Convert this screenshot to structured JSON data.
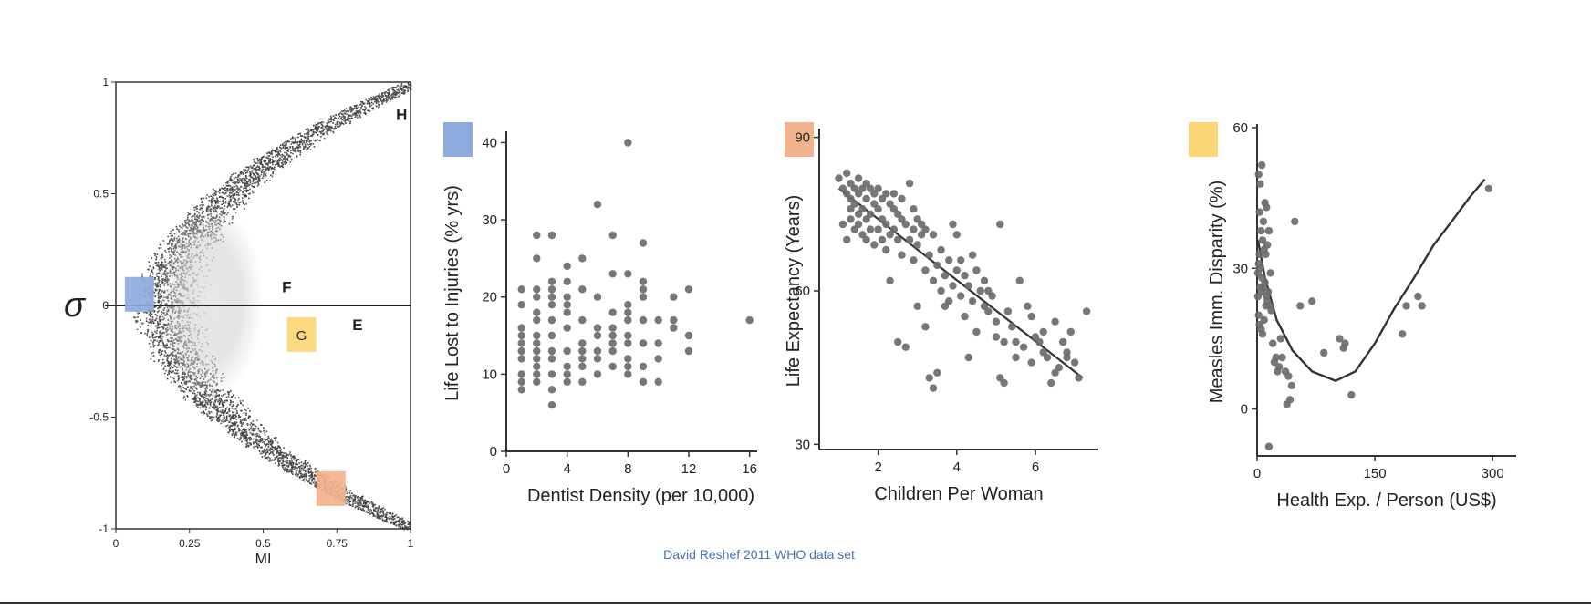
{
  "footer": {
    "credit": "David Reshef 2011 WHO data set"
  },
  "colors": {
    "blue": "#8eabdd",
    "orange": "#f3b28e",
    "yellow": "#fbd676",
    "dot": "#6b6b6b",
    "axis": "#333333"
  },
  "chart_data": [
    {
      "type": "scatter",
      "id": "mic-vs-correlation",
      "xlabel": "MI",
      "ylabel": "σ",
      "xlim": [
        0,
        1
      ],
      "ylim": [
        -1,
        1
      ],
      "xticks": [
        "0",
        "0.25",
        "0.5",
        "0.75",
        "1"
      ],
      "yticks": [
        "-1",
        "-0.5",
        "0",
        "0.5",
        "1"
      ],
      "points_description": "dense density of pairwise relationships forming a parabolic band from MI≈0.15 at σ=0 to MI≈1 at σ=±1",
      "annotations": [
        {
          "label": "H",
          "x": 0.97,
          "y": 0.83
        },
        {
          "label": "F",
          "x": 0.58,
          "y": 0.06
        },
        {
          "label": "E",
          "x": 0.82,
          "y": -0.11
        }
      ],
      "markers": [
        {
          "label": "",
          "color": "blue",
          "x": 0.08,
          "y": 0.05
        },
        {
          "label": "G",
          "color": "yellow",
          "x": 0.63,
          "y": -0.13
        },
        {
          "label": "",
          "color": "orange",
          "x": 0.73,
          "y": -0.82
        }
      ]
    },
    {
      "type": "scatter",
      "id": "dentist-vs-injuries",
      "marker_color": "blue",
      "xlabel": "Dentist Density (per 10,000)",
      "ylabel": "Life Lost to Injuries (% yrs)",
      "xlim": [
        0,
        16.5
      ],
      "ylim": [
        0,
        41
      ],
      "xticks": [
        0,
        4,
        8,
        12,
        16
      ],
      "yticks": [
        0,
        10,
        20,
        30,
        40
      ],
      "points": [
        [
          1,
          8
        ],
        [
          1,
          9
        ],
        [
          1,
          10
        ],
        [
          1,
          12
        ],
        [
          1,
          13
        ],
        [
          1,
          15
        ],
        [
          1,
          16
        ],
        [
          1,
          19
        ],
        [
          1,
          21
        ],
        [
          1,
          14
        ],
        [
          2,
          10
        ],
        [
          2,
          11
        ],
        [
          2,
          13
        ],
        [
          2,
          14
        ],
        [
          2,
          15
        ],
        [
          2,
          17
        ],
        [
          2,
          18
        ],
        [
          2,
          20
        ],
        [
          2,
          21
        ],
        [
          2,
          25
        ],
        [
          2,
          28
        ],
        [
          2,
          12
        ],
        [
          2,
          9
        ],
        [
          3,
          6
        ],
        [
          3,
          8
        ],
        [
          3,
          10
        ],
        [
          3,
          12
        ],
        [
          3,
          15
        ],
        [
          3,
          17
        ],
        [
          3,
          19
        ],
        [
          3,
          20
        ],
        [
          3,
          21
        ],
        [
          3,
          22
        ],
        [
          3,
          28
        ],
        [
          3,
          13
        ],
        [
          4,
          9
        ],
        [
          4,
          10
        ],
        [
          4,
          11
        ],
        [
          4,
          13
        ],
        [
          4,
          16
        ],
        [
          4,
          18
        ],
        [
          4,
          19
        ],
        [
          4,
          20
        ],
        [
          4,
          22
        ],
        [
          4,
          24
        ],
        [
          5,
          9
        ],
        [
          5,
          11
        ],
        [
          5,
          12
        ],
        [
          5,
          13
        ],
        [
          5,
          14
        ],
        [
          5,
          17
        ],
        [
          5,
          21
        ],
        [
          5,
          25
        ],
        [
          6,
          10
        ],
        [
          6,
          12
        ],
        [
          6,
          13
        ],
        [
          6,
          15
        ],
        [
          6,
          16
        ],
        [
          6,
          32
        ],
        [
          6,
          20
        ],
        [
          7,
          11
        ],
        [
          7,
          13
        ],
        [
          7,
          14
        ],
        [
          7,
          15
        ],
        [
          7,
          16
        ],
        [
          7,
          18
        ],
        [
          7,
          23
        ],
        [
          7,
          28
        ],
        [
          8,
          10
        ],
        [
          8,
          11
        ],
        [
          8,
          12
        ],
        [
          8,
          14
        ],
        [
          8,
          15
        ],
        [
          8,
          17
        ],
        [
          8,
          18
        ],
        [
          8,
          19
        ],
        [
          8,
          23
        ],
        [
          8,
          40
        ],
        [
          9,
          9
        ],
        [
          9,
          11
        ],
        [
          9,
          14
        ],
        [
          9,
          17
        ],
        [
          9,
          20
        ],
        [
          9,
          21
        ],
        [
          9,
          22
        ],
        [
          9,
          27
        ],
        [
          10,
          9
        ],
        [
          10,
          12
        ],
        [
          10,
          14
        ],
        [
          10,
          17
        ],
        [
          11,
          16
        ],
        [
          11,
          17
        ],
        [
          11,
          20
        ],
        [
          12,
          13
        ],
        [
          12,
          15
        ],
        [
          12,
          21
        ],
        [
          16,
          17
        ]
      ]
    },
    {
      "type": "scatter",
      "id": "children-vs-life-expectancy",
      "marker_color": "orange",
      "xlabel": "Children Per Woman",
      "ylabel": "Life Expectancy (Years)",
      "xlim": [
        0.5,
        7.6
      ],
      "ylim": [
        29,
        91
      ],
      "xticks": [
        2,
        4,
        6
      ],
      "yticks": [
        30,
        60,
        90
      ],
      "trend_line": [
        [
          1.0,
          80
        ],
        [
          7.2,
          43
        ]
      ],
      "points": [
        [
          1.0,
          82
        ],
        [
          1.1,
          80
        ],
        [
          1.2,
          79
        ],
        [
          1.2,
          83
        ],
        [
          1.3,
          78
        ],
        [
          1.3,
          81
        ],
        [
          1.4,
          80
        ],
        [
          1.4,
          77
        ],
        [
          1.5,
          82
        ],
        [
          1.5,
          79
        ],
        [
          1.6,
          80
        ],
        [
          1.6,
          76
        ],
        [
          1.7,
          81
        ],
        [
          1.7,
          78
        ],
        [
          1.8,
          80
        ],
        [
          1.8,
          75
        ],
        [
          1.9,
          79
        ],
        [
          1.9,
          77
        ],
        [
          2.0,
          80
        ],
        [
          2.0,
          76
        ],
        [
          2.1,
          78
        ],
        [
          2.1,
          74
        ],
        [
          2.2,
          79
        ],
        [
          2.2,
          73
        ],
        [
          2.3,
          77
        ],
        [
          2.3,
          71
        ],
        [
          2.4,
          76
        ],
        [
          2.4,
          72
        ],
        [
          2.5,
          75
        ],
        [
          2.5,
          70
        ],
        [
          1.3,
          74
        ],
        [
          1.4,
          72
        ],
        [
          1.5,
          73
        ],
        [
          1.6,
          71
        ],
        [
          1.7,
          74
        ],
        [
          1.8,
          72
        ],
        [
          1.9,
          69
        ],
        [
          2.0,
          72
        ],
        [
          2.1,
          70
        ],
        [
          1.2,
          70
        ],
        [
          1.1,
          73
        ],
        [
          1.3,
          76
        ],
        [
          1.5,
          75
        ],
        [
          1.7,
          70
        ],
        [
          2.2,
          68
        ],
        [
          2.6,
          74
        ],
        [
          2.6,
          67
        ],
        [
          2.7,
          73
        ],
        [
          2.8,
          81
        ],
        [
          2.8,
          70
        ],
        [
          2.9,
          72
        ],
        [
          2.9,
          66
        ],
        [
          3.0,
          74
        ],
        [
          3.0,
          69
        ],
        [
          3.1,
          71
        ],
        [
          3.2,
          72
        ],
        [
          3.2,
          64
        ],
        [
          3.3,
          67
        ],
        [
          3.4,
          71
        ],
        [
          3.4,
          62
        ],
        [
          3.5,
          65
        ],
        [
          3.6,
          68
        ],
        [
          3.6,
          60
        ],
        [
          3.7,
          63
        ],
        [
          3.8,
          66
        ],
        [
          3.8,
          58
        ],
        [
          3.9,
          73
        ],
        [
          3.9,
          61
        ],
        [
          4.0,
          64
        ],
        [
          4.0,
          71
        ],
        [
          4.1,
          59
        ],
        [
          4.2,
          63
        ],
        [
          4.2,
          55
        ],
        [
          4.3,
          61
        ],
        [
          4.4,
          58
        ],
        [
          4.5,
          64
        ],
        [
          4.5,
          52
        ],
        [
          4.6,
          60
        ],
        [
          4.7,
          57
        ],
        [
          4.8,
          56
        ],
        [
          4.9,
          59
        ],
        [
          5.0,
          54
        ],
        [
          5.0,
          51
        ],
        [
          5.1,
          73
        ],
        [
          5.1,
          43
        ],
        [
          5.2,
          42
        ],
        [
          5.3,
          56
        ],
        [
          5.4,
          53
        ],
        [
          5.5,
          50
        ],
        [
          5.5,
          47
        ],
        [
          5.6,
          62
        ],
        [
          5.7,
          49
        ],
        [
          5.8,
          57
        ],
        [
          5.9,
          46
        ],
        [
          6.0,
          51
        ],
        [
          6.1,
          50
        ],
        [
          6.2,
          48
        ],
        [
          6.3,
          47
        ],
        [
          6.4,
          42
        ],
        [
          6.5,
          54
        ],
        [
          6.5,
          44
        ],
        [
          6.6,
          45
        ],
        [
          6.7,
          50
        ],
        [
          6.8,
          47
        ],
        [
          6.9,
          52
        ],
        [
          7.0,
          46
        ],
        [
          7.1,
          43
        ],
        [
          7.3,
          56
        ],
        [
          3.3,
          43
        ],
        [
          3.4,
          41
        ],
        [
          3.5,
          44
        ],
        [
          2.5,
          50
        ],
        [
          2.7,
          49
        ],
        [
          3.2,
          53
        ],
        [
          3.0,
          57
        ],
        [
          2.9,
          76
        ],
        [
          2.4,
          79
        ],
        [
          2.6,
          78
        ],
        [
          3.1,
          73
        ],
        [
          2.3,
          62
        ],
        [
          4.1,
          66
        ],
        [
          4.3,
          47
        ],
        [
          4.7,
          62
        ],
        [
          5.2,
          50
        ],
        [
          5.9,
          55
        ],
        [
          6.2,
          52
        ],
        [
          6.8,
          48
        ],
        [
          3.7,
          57
        ],
        [
          4.4,
          67
        ],
        [
          4.8,
          60
        ]
      ]
    },
    {
      "type": "scatter",
      "id": "health-exp-vs-measles",
      "marker_color": "yellow",
      "xlabel": "Health Exp. / Person (US$)",
      "ylabel": "Measles Imm. Disparity (%)",
      "xlim": [
        0,
        330
      ],
      "ylim": [
        -10,
        60
      ],
      "xticks": [
        0,
        150,
        300
      ],
      "yticks": [
        0,
        30,
        60
      ],
      "trend_curve": [
        [
          1,
          36
        ],
        [
          10,
          28
        ],
        [
          25,
          19
        ],
        [
          45,
          12.5
        ],
        [
          70,
          8
        ],
        [
          100,
          6
        ],
        [
          125,
          8
        ],
        [
          150,
          14
        ],
        [
          175,
          21.5
        ],
        [
          200,
          28
        ],
        [
          225,
          35
        ],
        [
          250,
          40.5
        ],
        [
          270,
          45
        ],
        [
          290,
          49
        ]
      ],
      "points": [
        [
          2,
          50
        ],
        [
          4,
          48
        ],
        [
          6,
          52
        ],
        [
          8,
          40
        ],
        [
          10,
          44
        ],
        [
          12,
          43
        ],
        [
          3,
          42
        ],
        [
          5,
          38
        ],
        [
          7,
          36
        ],
        [
          9,
          34
        ],
        [
          11,
          33
        ],
        [
          13,
          35
        ],
        [
          15,
          38
        ],
        [
          1,
          29
        ],
        [
          2,
          31
        ],
        [
          3,
          33
        ],
        [
          4,
          30
        ],
        [
          6,
          28
        ],
        [
          8,
          26
        ],
        [
          10,
          27
        ],
        [
          12,
          24
        ],
        [
          14,
          25
        ],
        [
          16,
          22
        ],
        [
          18,
          21
        ],
        [
          2,
          20
        ],
        [
          3,
          18
        ],
        [
          5,
          17
        ],
        [
          7,
          16
        ],
        [
          9,
          19
        ],
        [
          11,
          22
        ],
        [
          13,
          23
        ],
        [
          1,
          24
        ],
        [
          4,
          26
        ],
        [
          6,
          25
        ],
        [
          17,
          29
        ],
        [
          20,
          14
        ],
        [
          24,
          11
        ],
        [
          28,
          9
        ],
        [
          32,
          11
        ],
        [
          36,
          8
        ],
        [
          40,
          7
        ],
        [
          44,
          5
        ],
        [
          42,
          2
        ],
        [
          38,
          1
        ],
        [
          30,
          15
        ],
        [
          22,
          10
        ],
        [
          26,
          8
        ],
        [
          48,
          40
        ],
        [
          55,
          22
        ],
        [
          70,
          23
        ],
        [
          85,
          12
        ],
        [
          105,
          15
        ],
        [
          110,
          13
        ],
        [
          112,
          14
        ],
        [
          120,
          3
        ],
        [
          15,
          -8
        ],
        [
          185,
          16
        ],
        [
          190,
          22
        ],
        [
          205,
          24
        ],
        [
          210,
          22
        ],
        [
          295,
          47
        ]
      ]
    }
  ]
}
